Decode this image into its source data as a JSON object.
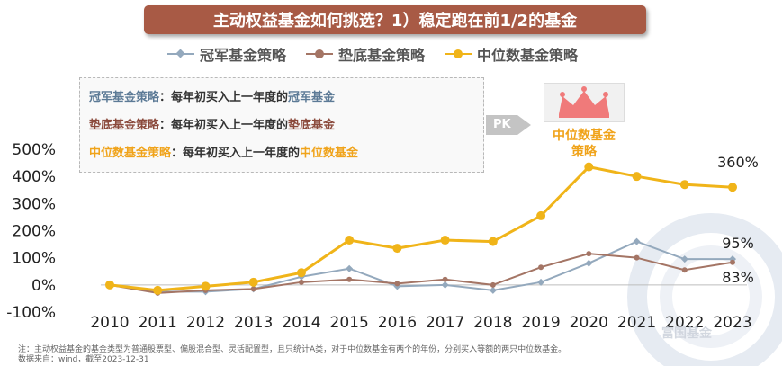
{
  "banner": {
    "title": "主动权益基金如何挑选？1）稳定跑在前1/2的基金"
  },
  "definitions": [
    {
      "term": "冠军基金策略",
      "text": "：每年初买入上一年度的",
      "target": "冠军基金",
      "color": "#5c7a96"
    },
    {
      "term": "垫底基金策略",
      "text": "：每年初买入上一年度的",
      "target": "垫底基金",
      "color": "#8b4a3c"
    },
    {
      "term": "中位数基金策略",
      "text": "：每年初买入上一年度的",
      "target": "中位数基金",
      "color": "#f0a31a"
    }
  ],
  "pk": {
    "label": "PK",
    "caption": "中位数基金策略"
  },
  "footnote": {
    "line1": "注：主动权益基金的基金类型为普通股票型、偏股混合型、灵活配置型，且只统计A类，对于中位数基金有两个的年份，分别买入等额的两只中位数基金。",
    "line2": "数据来自：wind，截至2023-12-31"
  },
  "watermark": "富国基金",
  "colors": {
    "champion": "#94a9bd",
    "bottom": "#a47565",
    "median": "#f0b419",
    "grid": "#e6e6e6"
  },
  "chart_data": {
    "type": "line",
    "title": "主动权益基金如何挑选？1）稳定跑在前1/2的基金",
    "x": [
      "2010",
      "2011",
      "2012",
      "2013",
      "2014",
      "2015",
      "2016",
      "2017",
      "2018",
      "2019",
      "2020",
      "2021",
      "2022",
      "2023"
    ],
    "y_ticks": [
      "-100%",
      "0%",
      "100%",
      "200%",
      "300%",
      "400%",
      "500%"
    ],
    "ylim": [
      -100,
      500
    ],
    "legend_position": "top",
    "series": [
      {
        "name": "冠军基金策略",
        "color": "#94a9bd",
        "marker": "diamond",
        "values": [
          0,
          -25,
          -25,
          -15,
          30,
          60,
          -5,
          0,
          -20,
          10,
          80,
          160,
          95,
          95
        ]
      },
      {
        "name": "垫底基金策略",
        "color": "#a47565",
        "marker": "circle-small",
        "values": [
          0,
          -30,
          -20,
          -15,
          10,
          20,
          5,
          20,
          0,
          65,
          115,
          100,
          55,
          83
        ]
      },
      {
        "name": "中位数基金策略",
        "color": "#f0b419",
        "marker": "circle",
        "values": [
          0,
          -20,
          -5,
          10,
          45,
          165,
          135,
          165,
          160,
          255,
          435,
          400,
          370,
          360
        ]
      }
    ],
    "end_labels": [
      {
        "series": "中位数基金策略",
        "text": "360%"
      },
      {
        "series": "冠军基金策略",
        "text": "95%"
      },
      {
        "series": "垫底基金策略",
        "text": "83%"
      }
    ]
  }
}
